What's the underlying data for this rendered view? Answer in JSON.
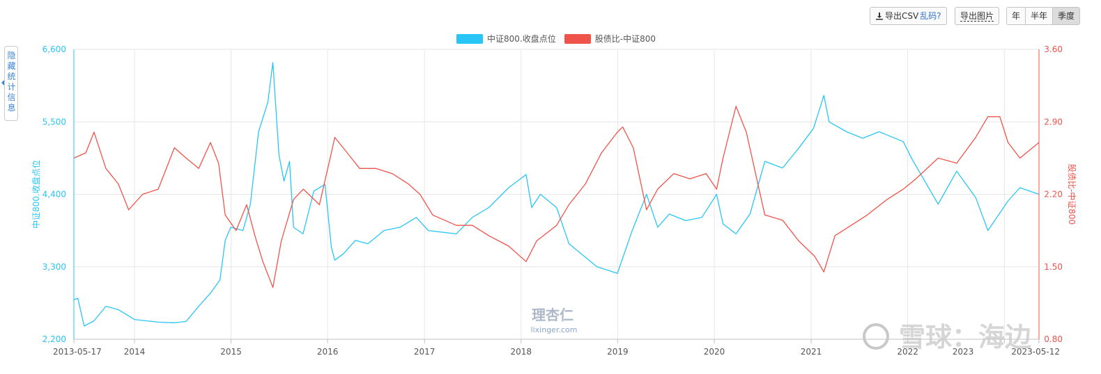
{
  "toolbar": {
    "export_csv": "导出CSV",
    "garbled": "乱码?",
    "export_image": "导出图片",
    "periods": [
      "年",
      "半年",
      "季度"
    ],
    "active_period": "季度"
  },
  "side_panel": {
    "label": "隐藏统计信息"
  },
  "watermark": {
    "logo": "理杏仁",
    "url": "lixinger.com",
    "corner": "雪球：海边"
  },
  "colors": {
    "index": "#29c5f6",
    "ratio": "#f0534a",
    "grid": "#e6e6e6"
  },
  "chart_data": {
    "type": "line",
    "title": "",
    "x_range": [
      "2013-05-17",
      "2023-05-12"
    ],
    "x_ticks": [
      "2013-05-17",
      "2014",
      "2015",
      "2016",
      "2017",
      "2018",
      "2019",
      "2020",
      "2021",
      "2022",
      "2023",
      "2023-05-12"
    ],
    "x_tick_dates": [
      "2013-05-17",
      "2014-01-01",
      "2015-01-01",
      "2016-01-01",
      "2017-01-01",
      "2018-01-01",
      "2019-01-01",
      "2020-01-01",
      "2021-01-01",
      "2022-01-01",
      "2023-01-01",
      "2023-05-12"
    ],
    "y_left": {
      "label": "中证800.收盘点位",
      "ticks": [
        "2,200",
        "3,300",
        "4,400",
        "5,500",
        "6,600"
      ],
      "range": [
        2200,
        6600
      ]
    },
    "y_right": {
      "label": "股债比-中证800",
      "ticks": [
        "0.80",
        "1.50",
        "2.20",
        "2.90",
        "3.60"
      ],
      "range": [
        0.8,
        3.6
      ]
    },
    "series": [
      {
        "name": "中证800.收盘点位",
        "axis": "left",
        "points": [
          [
            "2013-05-17",
            2800
          ],
          [
            "2013-06-01",
            2820
          ],
          [
            "2013-06-25",
            2400
          ],
          [
            "2013-08-01",
            2480
          ],
          [
            "2013-09-15",
            2700
          ],
          [
            "2013-11-01",
            2650
          ],
          [
            "2014-01-01",
            2500
          ],
          [
            "2014-04-01",
            2460
          ],
          [
            "2014-06-01",
            2450
          ],
          [
            "2014-07-15",
            2470
          ],
          [
            "2014-09-01",
            2700
          ],
          [
            "2014-10-15",
            2900
          ],
          [
            "2014-11-20",
            3100
          ],
          [
            "2014-12-10",
            3700
          ],
          [
            "2014-12-31",
            3900
          ],
          [
            "2015-02-15",
            3850
          ],
          [
            "2015-03-15",
            4250
          ],
          [
            "2015-04-15",
            5350
          ],
          [
            "2015-05-20",
            5800
          ],
          [
            "2015-06-08",
            6400
          ],
          [
            "2015-07-01",
            5000
          ],
          [
            "2015-07-20",
            4600
          ],
          [
            "2015-08-10",
            4900
          ],
          [
            "2015-08-25",
            3900
          ],
          [
            "2015-09-30",
            3800
          ],
          [
            "2015-11-10",
            4450
          ],
          [
            "2015-12-22",
            4550
          ],
          [
            "2016-01-15",
            3600
          ],
          [
            "2016-01-28",
            3400
          ],
          [
            "2016-03-01",
            3500
          ],
          [
            "2016-04-15",
            3700
          ],
          [
            "2016-06-01",
            3650
          ],
          [
            "2016-08-01",
            3850
          ],
          [
            "2016-10-01",
            3900
          ],
          [
            "2016-12-01",
            4050
          ],
          [
            "2017-01-15",
            3850
          ],
          [
            "2017-05-01",
            3800
          ],
          [
            "2017-07-01",
            4050
          ],
          [
            "2017-09-01",
            4200
          ],
          [
            "2017-11-15",
            4500
          ],
          [
            "2018-01-20",
            4700
          ],
          [
            "2018-02-10",
            4200
          ],
          [
            "2018-03-15",
            4400
          ],
          [
            "2018-05-15",
            4200
          ],
          [
            "2018-07-01",
            3650
          ],
          [
            "2018-08-15",
            3500
          ],
          [
            "2018-10-15",
            3300
          ],
          [
            "2018-12-31",
            3200
          ],
          [
            "2019-02-25",
            3850
          ],
          [
            "2019-04-20",
            4400
          ],
          [
            "2019-06-01",
            3900
          ],
          [
            "2019-07-15",
            4100
          ],
          [
            "2019-09-15",
            4000
          ],
          [
            "2019-11-15",
            4050
          ],
          [
            "2020-01-10",
            4400
          ],
          [
            "2020-02-03",
            3950
          ],
          [
            "2020-03-23",
            3800
          ],
          [
            "2020-05-15",
            4100
          ],
          [
            "2020-07-10",
            4900
          ],
          [
            "2020-09-15",
            4800
          ],
          [
            "2020-11-15",
            5100
          ],
          [
            "2021-01-10",
            5400
          ],
          [
            "2021-02-18",
            5900
          ],
          [
            "2021-03-10",
            5500
          ],
          [
            "2021-05-15",
            5350
          ],
          [
            "2021-07-15",
            5250
          ],
          [
            "2021-09-15",
            5350
          ],
          [
            "2021-12-15",
            5200
          ],
          [
            "2022-01-15",
            4950
          ],
          [
            "2022-04-26",
            4250
          ],
          [
            "2022-07-05",
            4750
          ],
          [
            "2022-09-15",
            4350
          ],
          [
            "2022-10-31",
            3850
          ],
          [
            "2023-01-15",
            4300
          ],
          [
            "2023-03-01",
            4500
          ],
          [
            "2023-05-12",
            4400
          ]
        ]
      },
      {
        "name": "股债比-中证800",
        "axis": "right",
        "points": [
          [
            "2013-05-17",
            2.55
          ],
          [
            "2013-07-01",
            2.6
          ],
          [
            "2013-08-01",
            2.8
          ],
          [
            "2013-09-15",
            2.45
          ],
          [
            "2013-11-01",
            2.3
          ],
          [
            "2013-12-10",
            2.05
          ],
          [
            "2014-02-01",
            2.2
          ],
          [
            "2014-04-01",
            2.25
          ],
          [
            "2014-06-01",
            2.65
          ],
          [
            "2014-07-15",
            2.55
          ],
          [
            "2014-09-01",
            2.45
          ],
          [
            "2014-10-15",
            2.7
          ],
          [
            "2014-11-15",
            2.5
          ],
          [
            "2014-12-10",
            2.0
          ],
          [
            "2015-01-20",
            1.85
          ],
          [
            "2015-03-01",
            2.1
          ],
          [
            "2015-04-01",
            1.8
          ],
          [
            "2015-05-01",
            1.55
          ],
          [
            "2015-06-08",
            1.3
          ],
          [
            "2015-07-10",
            1.75
          ],
          [
            "2015-08-25",
            2.15
          ],
          [
            "2015-10-01",
            2.25
          ],
          [
            "2015-12-01",
            2.1
          ],
          [
            "2016-01-15",
            2.6
          ],
          [
            "2016-01-28",
            2.75
          ],
          [
            "2016-03-15",
            2.6
          ],
          [
            "2016-05-01",
            2.45
          ],
          [
            "2016-07-01",
            2.45
          ],
          [
            "2016-09-01",
            2.4
          ],
          [
            "2016-11-01",
            2.3
          ],
          [
            "2016-12-15",
            2.2
          ],
          [
            "2017-02-01",
            2.0
          ],
          [
            "2017-05-01",
            1.9
          ],
          [
            "2017-07-01",
            1.9
          ],
          [
            "2017-09-01",
            1.8
          ],
          [
            "2017-11-15",
            1.7
          ],
          [
            "2018-01-20",
            1.55
          ],
          [
            "2018-03-01",
            1.75
          ],
          [
            "2018-05-15",
            1.9
          ],
          [
            "2018-07-01",
            2.1
          ],
          [
            "2018-09-01",
            2.3
          ],
          [
            "2018-11-01",
            2.6
          ],
          [
            "2018-12-31",
            2.8
          ],
          [
            "2019-01-20",
            2.85
          ],
          [
            "2019-03-01",
            2.65
          ],
          [
            "2019-04-20",
            2.05
          ],
          [
            "2019-06-01",
            2.25
          ],
          [
            "2019-08-01",
            2.4
          ],
          [
            "2019-10-01",
            2.35
          ],
          [
            "2019-12-01",
            2.4
          ],
          [
            "2020-01-10",
            2.25
          ],
          [
            "2020-02-03",
            2.55
          ],
          [
            "2020-03-23",
            3.05
          ],
          [
            "2020-05-01",
            2.8
          ],
          [
            "2020-07-10",
            2.0
          ],
          [
            "2020-09-15",
            1.95
          ],
          [
            "2020-11-15",
            1.75
          ],
          [
            "2021-01-15",
            1.6
          ],
          [
            "2021-02-18",
            1.45
          ],
          [
            "2021-04-01",
            1.8
          ],
          [
            "2021-06-01",
            1.9
          ],
          [
            "2021-08-01",
            2.0
          ],
          [
            "2021-10-15",
            2.15
          ],
          [
            "2021-12-15",
            2.25
          ],
          [
            "2022-02-01",
            2.35
          ],
          [
            "2022-04-26",
            2.55
          ],
          [
            "2022-07-05",
            2.5
          ],
          [
            "2022-09-15",
            2.75
          ],
          [
            "2022-10-31",
            2.95
          ],
          [
            "2022-12-15",
            2.95
          ],
          [
            "2023-01-15",
            2.7
          ],
          [
            "2023-03-01",
            2.55
          ],
          [
            "2023-05-12",
            2.7
          ]
        ]
      }
    ],
    "legend": [
      "中证800.收盘点位",
      "股债比-中证800"
    ],
    "legend_position": "top-center",
    "grid": true
  }
}
